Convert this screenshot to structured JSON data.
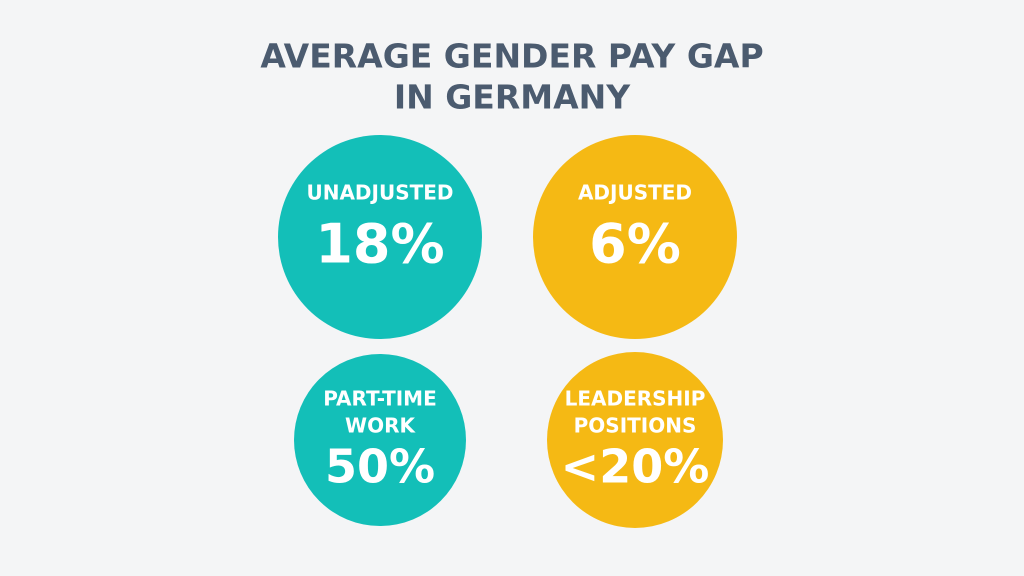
{
  "title": {
    "lines": [
      "AVERAGE GENDER PAY GAP",
      "IN GERMANY"
    ]
  },
  "stats": [
    {
      "label_lines": [
        "UNADJUSTED"
      ],
      "value": "18%"
    },
    {
      "label_lines": [
        "ADJUSTED"
      ],
      "value": "6%"
    },
    {
      "label_lines": [
        "PART-TIME",
        "WORK"
      ],
      "value": "50%"
    },
    {
      "label_lines": [
        "LEADERSHIP",
        "POSITIONS"
      ],
      "value": "<20%"
    }
  ]
}
